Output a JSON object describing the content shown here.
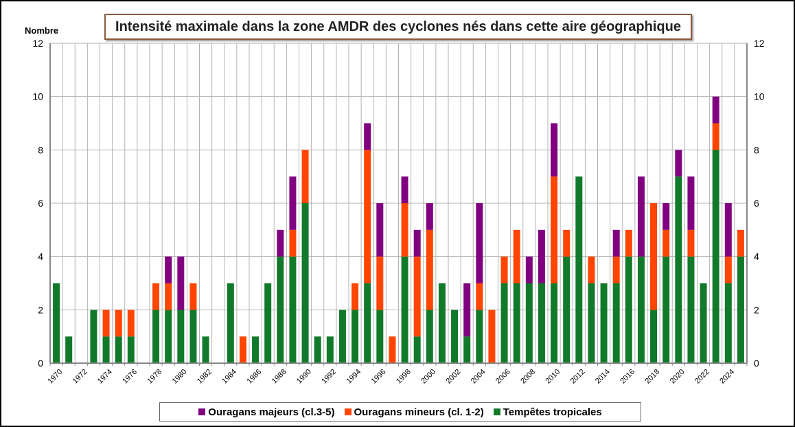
{
  "title": "Intensité maximale dans la zone AMDR des cyclones nés dans cette aire géographique",
  "unit_label": "Nombre",
  "colors": {
    "major": "#800080",
    "minor": "#ff4500",
    "storm": "#117a2a"
  },
  "legend": [
    {
      "key": "major",
      "label": "Ouragans majeurs (cl.3-5)"
    },
    {
      "key": "minor",
      "label": "Ouragans mineurs (cl. 1-2)"
    },
    {
      "key": "storm",
      "label": "Tempêtes tropicales"
    }
  ],
  "chart_data": {
    "type": "bar",
    "stacked": true,
    "title": "Intensité maximale dans la zone AMDR des cyclones nés dans cette aire géographique",
    "ylabel": "Nombre",
    "ylim": [
      0,
      12
    ],
    "yticks": [
      0,
      2,
      4,
      6,
      8,
      10,
      12
    ],
    "grid": true,
    "legend_position": "bottom",
    "categories": [
      "1970",
      "1971",
      "1972",
      "1973",
      "1974",
      "1975",
      "1976",
      "1977",
      "1978",
      "1979",
      "1980",
      "1981",
      "1982",
      "1983",
      "1984",
      "1985",
      "1986",
      "1987",
      "1988",
      "1989",
      "1990",
      "1991",
      "1992",
      "1993",
      "1994",
      "1995",
      "1996",
      "1997",
      "1998",
      "1999",
      "2000",
      "2001",
      "2002",
      "2003",
      "2004",
      "2005",
      "2006",
      "2007",
      "2008",
      "2009",
      "2010",
      "2011",
      "2012",
      "2013",
      "2014",
      "2015",
      "2016",
      "2017",
      "2018",
      "2019",
      "2020",
      "2021",
      "2022",
      "2023",
      "2024",
      "2025"
    ],
    "xtick_labels": [
      "1970",
      "1972",
      "1974",
      "1976",
      "1978",
      "1980",
      "1982",
      "1984",
      "1986",
      "1988",
      "1990",
      "1992",
      "1994",
      "1996",
      "1998",
      "2000",
      "2002",
      "2004",
      "2006",
      "2008",
      "2010",
      "2012",
      "2014",
      "2016",
      "2018",
      "2020",
      "2022",
      "2024"
    ],
    "series": [
      {
        "name": "Tempêtes tropicales",
        "key": "storm",
        "values": [
          3,
          1,
          0,
          2,
          1,
          1,
          1,
          0,
          2,
          2,
          2,
          2,
          1,
          0,
          3,
          0,
          1,
          3,
          4,
          4,
          6,
          1,
          1,
          2,
          2,
          3,
          2,
          0,
          4,
          1,
          2,
          3,
          2,
          1,
          2,
          0,
          3,
          3,
          3,
          3,
          3,
          4,
          7,
          3,
          3,
          3,
          4,
          4,
          2,
          4,
          7,
          4,
          3,
          8,
          3,
          4
        ]
      },
      {
        "name": "Ouragans mineurs (cl. 1-2)",
        "key": "minor",
        "values": [
          0,
          0,
          0,
          0,
          1,
          1,
          1,
          0,
          1,
          1,
          0,
          1,
          0,
          0,
          0,
          1,
          0,
          0,
          0,
          1,
          2,
          0,
          0,
          0,
          1,
          5,
          2,
          1,
          2,
          3,
          3,
          0,
          0,
          0,
          1,
          2,
          1,
          2,
          0,
          0,
          4,
          1,
          0,
          1,
          0,
          1,
          1,
          0,
          4,
          1,
          0,
          1,
          0,
          1,
          1,
          1
        ]
      },
      {
        "name": "Ouragans majeurs (cl.3-5)",
        "key": "major",
        "values": [
          0,
          0,
          0,
          0,
          0,
          0,
          0,
          0,
          0,
          1,
          2,
          0,
          0,
          0,
          0,
          0,
          0,
          0,
          1,
          2,
          0,
          0,
          0,
          0,
          0,
          1,
          2,
          0,
          1,
          1,
          1,
          0,
          0,
          2,
          3,
          0,
          0,
          0,
          1,
          2,
          2,
          0,
          0,
          0,
          0,
          1,
          0,
          3,
          0,
          1,
          1,
          2,
          0,
          1,
          2,
          0
        ]
      }
    ]
  }
}
